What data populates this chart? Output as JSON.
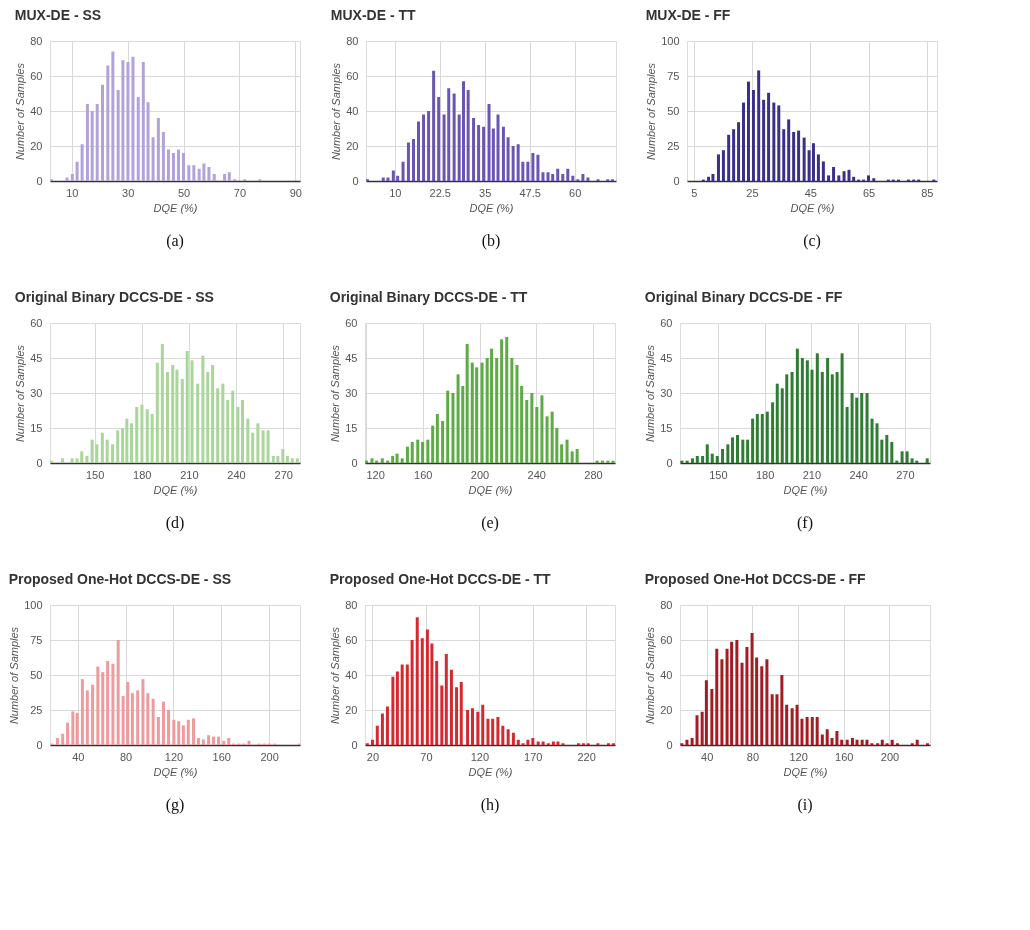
{
  "chart_data": [
    {
      "type": "bar",
      "title": "MUX-DE - SS",
      "xlabel": "DQE (%)",
      "ylabel": "Number of Samples",
      "color": "#b3a2da",
      "grid": true,
      "annotations": [
        "(a)"
      ],
      "xlim": [
        2.2,
        91.7
      ],
      "xticks": [
        10,
        30,
        50,
        70,
        90
      ],
      "ylim": [
        0,
        80
      ],
      "yticks": [
        0,
        20,
        40,
        60,
        80
      ],
      "x": [
        2.8,
        8.3,
        10.2,
        11.9,
        13.7,
        15.6,
        17.3,
        19.1,
        21.0,
        22.9,
        24.7,
        26.6,
        28.3,
        30.1,
        31.9,
        33.8,
        35.6,
        37.3,
        39.1,
        41.0,
        42.8,
        44.6,
        46.4,
        48.2,
        50.0,
        51.9,
        53.7,
        55.6,
        57.3,
        59.1,
        61.0,
        64.7,
        66.4,
        68.3,
        71.9,
        77.3
      ],
      "values": [
        1,
        2,
        4,
        11,
        21,
        44,
        40,
        44,
        55,
        66,
        74,
        52,
        69,
        68,
        71,
        48,
        68,
        45,
        25,
        36,
        28,
        18,
        16,
        18,
        16,
        9,
        9,
        7,
        10,
        8,
        4,
        4,
        5,
        1,
        1,
        1
      ]
    },
    {
      "type": "bar",
      "title": "MUX-DE - TT",
      "xlabel": "DQE (%)",
      "ylabel": "Number of Samples",
      "color": "#6a55b3",
      "grid": true,
      "annotations": [
        "(b)"
      ],
      "xlim": [
        2.0,
        71.5
      ],
      "xticks": [
        10,
        22.5,
        35,
        47.5,
        60
      ],
      "ylim": [
        0,
        80
      ],
      "yticks": [
        0,
        20,
        40,
        60,
        80
      ],
      "x": [
        2.4,
        6.8,
        8.1,
        9.6,
        10.8,
        12.3,
        13.8,
        15.2,
        16.6,
        18.0,
        19.4,
        20.8,
        22.2,
        23.7,
        25.0,
        26.5,
        27.9,
        29.1,
        30.4,
        31.9,
        33.3,
        34.7,
        36.2,
        37.4,
        38.7,
        40.2,
        41.5,
        42.9,
        44.3,
        45.6,
        47.0,
        48.4,
        49.8,
        51.2,
        52.6,
        53.9,
        55.3,
        56.7,
        58.1,
        59.5,
        60.9,
        62.3,
        63.7,
        66.5,
        69.2,
        70.5
      ],
      "values": [
        1,
        2,
        2,
        6,
        3,
        11,
        22,
        24,
        34,
        38,
        40,
        63,
        48,
        38,
        53,
        50,
        38,
        57,
        52,
        36,
        32,
        31,
        44,
        30,
        38,
        31,
        25,
        20,
        21,
        11,
        11,
        16,
        15,
        5,
        5,
        4,
        7,
        4,
        7,
        3,
        1,
        4,
        2,
        1,
        1,
        1
      ]
    },
    {
      "type": "bar",
      "title": "MUX-DE - FF",
      "xlabel": "DQE (%)",
      "ylabel": "Number of Samples",
      "color": "#3a3088",
      "grid": true,
      "annotations": [
        "(c)"
      ],
      "xlim": [
        2.7,
        88.5
      ],
      "xticks": [
        5,
        25,
        45,
        65,
        85
      ],
      "ylim": [
        0,
        100
      ],
      "yticks": [
        0,
        25,
        50,
        75,
        100
      ],
      "x": [
        8.3,
        10.1,
        11.6,
        13.5,
        15.2,
        17.0,
        18.7,
        20.4,
        22.1,
        23.8,
        25.5,
        27.3,
        29.0,
        30.7,
        32.5,
        34.2,
        35.9,
        37.6,
        39.3,
        41.0,
        42.9,
        44.6,
        46.1,
        47.8,
        49.5,
        51.3,
        53.0,
        54.8,
        56.6,
        58.3,
        59.9,
        61.6,
        63.3,
        65.0,
        66.8,
        71.8,
        73.5,
        75.3,
        78.7,
        80.5,
        82.2,
        87.4
      ],
      "values": [
        1,
        3,
        5,
        19,
        22,
        33,
        37,
        42,
        56,
        71,
        65,
        79,
        58,
        63,
        56,
        54,
        37,
        44,
        35,
        36,
        31,
        22,
        27,
        19,
        14,
        4,
        10,
        4,
        7,
        8,
        3,
        1,
        1,
        4,
        2,
        1,
        1,
        1,
        1,
        1,
        1,
        1
      ]
    },
    {
      "type": "bar",
      "title": "Original Binary DCCS-DE - SS",
      "xlabel": "DQE (%)",
      "ylabel": "Number of Samples",
      "color": "#aad59b",
      "grid": true,
      "annotations": [
        "(d)"
      ],
      "xlim": [
        121.6,
        280.7
      ],
      "xticks": [
        150,
        180,
        210,
        240,
        270
      ],
      "ylim": [
        0,
        60
      ],
      "yticks": [
        0,
        15,
        30,
        45,
        60
      ],
      "x": [
        122.6,
        129.5,
        135.7,
        138.8,
        141.8,
        145.1,
        148.4,
        151.4,
        154.9,
        158.0,
        161.4,
        164.7,
        167.8,
        170.5,
        173.5,
        176.8,
        180.1,
        183.5,
        186.6,
        189.9,
        193.1,
        196.4,
        199.7,
        202.4,
        205.8,
        208.9,
        212.0,
        215.6,
        218.9,
        222.0,
        225.1,
        228.3,
        231.6,
        234.7,
        237.9,
        241.2,
        244.1,
        247.5,
        250.6,
        253.9,
        257.2,
        260.4,
        263.7,
        266.6,
        269.8,
        272.7,
        275.8,
        279.0
      ],
      "values": [
        1,
        2,
        2,
        2,
        5,
        3,
        10,
        8,
        13,
        10,
        8,
        14,
        15,
        19,
        17,
        24,
        25,
        23,
        21,
        43,
        51,
        39,
        42,
        40,
        36,
        48,
        44,
        34,
        46,
        39,
        42,
        32,
        34,
        27,
        31,
        24,
        27,
        19,
        13,
        17,
        14,
        14,
        3,
        3,
        6,
        3,
        2,
        2
      ]
    },
    {
      "type": "bar",
      "title": "Original Binary DCCS-DE - TT",
      "xlabel": "DQE (%)",
      "ylabel": "Number of Samples",
      "color": "#5cab45",
      "grid": true,
      "annotations": [
        "(e)"
      ],
      "xlim": [
        119.3,
        295.5
      ],
      "xticks": [
        120,
        160,
        200,
        240,
        280
      ],
      "ylim": [
        0,
        60
      ],
      "yticks": [
        0,
        15,
        30,
        45,
        60
      ],
      "x": [
        120.4,
        124.2,
        127.5,
        131.5,
        135.3,
        138.8,
        141.9,
        145.5,
        149.2,
        152.6,
        156.5,
        159.9,
        163.6,
        167.0,
        170.3,
        174.0,
        177.6,
        181.3,
        184.9,
        188.2,
        191.3,
        194.9,
        198.0,
        201.8,
        205.4,
        208.5,
        212.1,
        215.6,
        219.2,
        222.8,
        226.4,
        229.7,
        233.3,
        236.9,
        240.4,
        244.0,
        247.6,
        251.2,
        254.5,
        257.9,
        261.7,
        265.3,
        268.8,
        282.9,
        286.7,
        290.5,
        294.1
      ],
      "values": [
        1,
        2,
        1,
        2,
        1,
        3,
        4,
        2,
        7,
        9,
        10,
        9,
        10,
        16,
        21,
        18,
        31,
        30,
        38,
        33,
        51,
        43,
        41,
        43,
        45,
        49,
        45,
        53,
        54,
        45,
        42,
        33,
        27,
        30,
        24,
        29,
        20,
        22,
        15,
        8,
        10,
        5,
        6,
        1,
        1,
        1,
        1
      ]
    },
    {
      "type": "bar",
      "title": "Original Binary DCCS-DE - FF",
      "xlabel": "DQE (%)",
      "ylabel": "Number of Samples",
      "color": "#2f7d33",
      "grid": true,
      "annotations": [
        "(f)"
      ],
      "xlim": [
        125.7,
        286.1
      ],
      "xticks": [
        150,
        180,
        210,
        240,
        270
      ],
      "ylim": [
        0,
        60
      ],
      "yticks": [
        0,
        15,
        30,
        45,
        60
      ],
      "x": [
        126.9,
        130.3,
        133.7,
        136.8,
        140.2,
        143.2,
        146.4,
        149.6,
        153.0,
        156.4,
        159.4,
        162.6,
        166.0,
        169.1,
        172.3,
        175.3,
        178.5,
        181.7,
        185.1,
        188.1,
        191.3,
        194.2,
        197.6,
        201.0,
        204.2,
        207.4,
        210.4,
        213.8,
        217.0,
        220.4,
        223.4,
        226.5,
        229.7,
        232.9,
        236.1,
        239.1,
        242.3,
        245.7,
        248.9,
        252.1,
        255.2,
        258.4,
        261.6,
        264.8,
        268.2,
        271.4,
        274.6,
        277.6,
        284.3
      ],
      "values": [
        1,
        1,
        2,
        3,
        3,
        8,
        4,
        3,
        6,
        8,
        11,
        12,
        10,
        10,
        19,
        21,
        21,
        22,
        26,
        34,
        32,
        38,
        39,
        49,
        45,
        44,
        40,
        47,
        39,
        45,
        38,
        39,
        47,
        24,
        30,
        28,
        30,
        30,
        19,
        17,
        10,
        12,
        9,
        1,
        5,
        5,
        2,
        1,
        2
      ]
    },
    {
      "type": "bar",
      "title": "Proposed One-Hot DCCS-DE - SS",
      "xlabel": "DQE (%)",
      "ylabel": "Number of Samples",
      "color": "#ef9a9c",
      "grid": true,
      "annotations": [
        "(g)"
      ],
      "xlim": [
        16.8,
        225.8
      ],
      "xticks": [
        40,
        80,
        120,
        160,
        200
      ],
      "ylim": [
        0,
        100
      ],
      "yticks": [
        0,
        25,
        50,
        75,
        100
      ],
      "x": [
        18.6,
        23.0,
        27.4,
        31.5,
        35.9,
        39.5,
        43.9,
        48.0,
        52.4,
        56.8,
        60.9,
        65.0,
        69.4,
        73.8,
        77.9,
        81.8,
        85.7,
        90.1,
        94.5,
        98.6,
        103.0,
        107.4,
        111.7,
        115.9,
        120.3,
        124.4,
        128.3,
        132.4,
        136.8,
        140.9,
        145.0,
        149.4,
        153.5,
        157.7,
        162.1,
        166.2,
        170.3,
        174.7,
        178.8,
        183.2,
        191.5,
        196.1,
        200.3,
        204.6,
        225.3
      ],
      "values": [
        1,
        5,
        8,
        16,
        24,
        23,
        47,
        39,
        43,
        56,
        52,
        60,
        58,
        75,
        35,
        45,
        37,
        39,
        47,
        37,
        33,
        20,
        31,
        25,
        18,
        17,
        14,
        18,
        19,
        5,
        4,
        7,
        6,
        6,
        3,
        5,
        1,
        1,
        1,
        3,
        1,
        1,
        1,
        1,
        1
      ]
    },
    {
      "type": "bar",
      "title": "Proposed One-Hot DCCS-DE - TT",
      "xlabel": "DQE (%)",
      "ylabel": "Number of Samples",
      "color": "#d42a2f",
      "grid": true,
      "annotations": [
        "(h)"
      ],
      "xlim": [
        13,
        247
      ],
      "xticks": [
        20,
        70,
        120,
        170,
        220
      ],
      "ylim": [
        0,
        80
      ],
      "yticks": [
        0,
        20,
        40,
        60,
        80
      ],
      "x": [
        15.2,
        20.0,
        24.5,
        29.3,
        34.0,
        39.1,
        43.3,
        47.8,
        52.6,
        57.1,
        61.9,
        66.6,
        71.4,
        75.6,
        80.1,
        84.9,
        89.1,
        93.9,
        98.7,
        103.1,
        109.0,
        113.6,
        118.6,
        123.2,
        128.1,
        132.5,
        137.4,
        142.0,
        147.0,
        151.9,
        156.5,
        160.9,
        165.5,
        170.1,
        175.1,
        179.7,
        184.6,
        189.3,
        193.6,
        198.3,
        212.8,
        217.4,
        222.0,
        231.0,
        240.9,
        245.5
      ],
      "values": [
        1,
        3,
        11,
        18,
        22,
        39,
        42,
        46,
        46,
        60,
        73,
        61,
        66,
        58,
        48,
        34,
        52,
        43,
        33,
        36,
        20,
        21,
        19,
        23,
        15,
        15,
        16,
        11,
        9,
        7,
        3,
        1,
        3,
        4,
        2,
        2,
        1,
        2,
        2,
        1,
        1,
        1,
        1,
        1,
        1,
        1
      ]
    },
    {
      "type": "bar",
      "title": "Proposed One-Hot DCCS-DE - FF",
      "xlabel": "DQE (%)",
      "ylabel": "Number of Samples",
      "color": "#a31c22",
      "grid": true,
      "annotations": [
        "(i)"
      ],
      "xlim": [
        16.6,
        235.5
      ],
      "xticks": [
        40,
        80,
        120,
        160,
        200
      ],
      "ylim": [
        0,
        80
      ],
      "yticks": [
        0,
        20,
        40,
        60,
        80
      ],
      "x": [
        18.2,
        22.7,
        27.2,
        31.5,
        36.0,
        39.7,
        44.5,
        48.8,
        53.3,
        57.8,
        61.8,
        66.4,
        70.9,
        75.2,
        79.7,
        83.7,
        88.2,
        92.7,
        97.3,
        101.5,
        105.8,
        110.0,
        114.8,
        119.1,
        123.4,
        127.9,
        132.4,
        136.7,
        141.2,
        145.5,
        149.7,
        154.0,
        158.2,
        163.0,
        167.6,
        171.6,
        176.1,
        180.3,
        184.6,
        189.7,
        193.7,
        197.9,
        202.4,
        207.0,
        220.0,
        224.3,
        233.3
      ],
      "values": [
        1,
        3,
        4,
        17,
        19,
        37,
        32,
        55,
        49,
        55,
        59,
        60,
        47,
        56,
        64,
        50,
        45,
        49,
        29,
        29,
        40,
        23,
        21,
        23,
        15,
        16,
        16,
        16,
        6,
        9,
        4,
        8,
        3,
        3,
        4,
        3,
        3,
        3,
        1,
        1,
        3,
        1,
        3,
        1,
        1,
        3,
        1
      ]
    }
  ]
}
